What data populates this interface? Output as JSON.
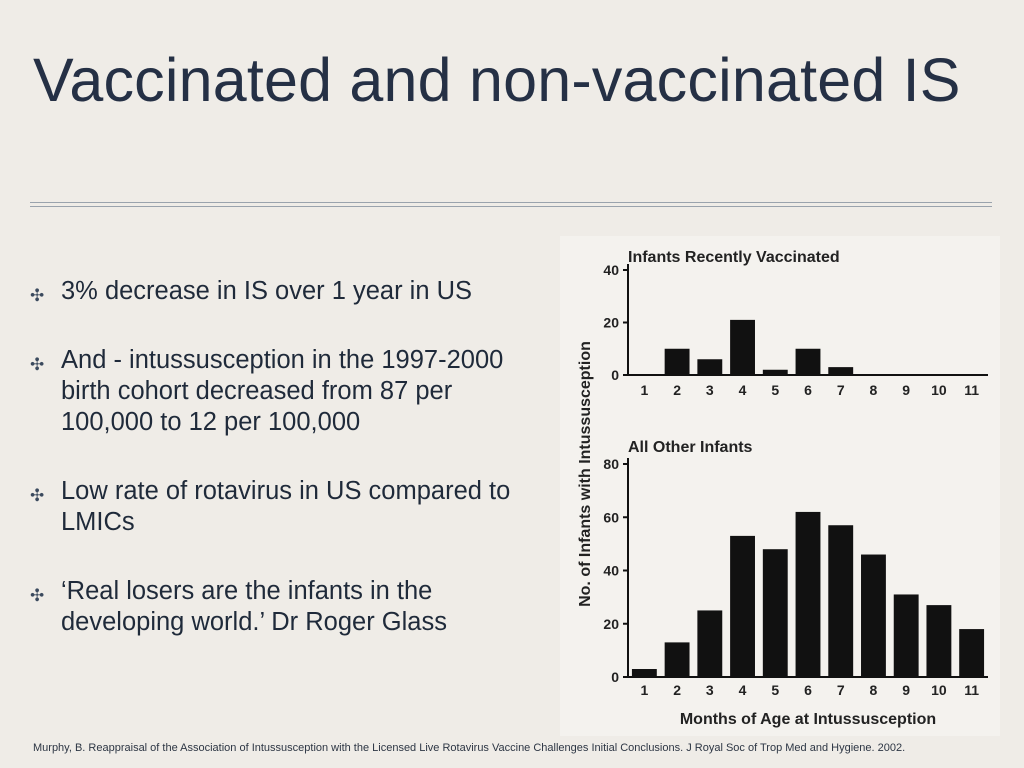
{
  "slide": {
    "title": "Vaccinated and non-vaccinated IS",
    "bullet_glyph": "✣",
    "bullets": [
      "3% decrease in IS over 1 year in US",
      "And - intussusception in the 1997-2000 birth cohort decreased from 87 per 100,000 to 12 per 100,000",
      "Low rate of rotavirus in US compared to LMICs",
      "‘Real losers are the infants in the developing world.’ Dr Roger Glass"
    ],
    "citation": "Murphy, B. Reappraisal of the Association of Intussusception with the Licensed Live Rotavirus Vaccine Challenges Initial Conclusions. J Royal Soc of Trop Med and Hygiene. 2002."
  },
  "chart_data": [
    {
      "type": "bar",
      "title": "Infants Recently Vaccinated",
      "ylabel": "No. of Infants with Intussusception",
      "xlabel": "",
      "categories": [
        "1",
        "2",
        "3",
        "4",
        "5",
        "6",
        "7",
        "8",
        "9",
        "10",
        "11"
      ],
      "values": [
        0,
        10,
        6,
        21,
        2,
        10,
        3,
        0,
        0,
        0,
        0
      ],
      "yticks": [
        0,
        20,
        40
      ],
      "ylim": [
        0,
        40
      ],
      "grid": false,
      "bar_color": "#111111"
    },
    {
      "type": "bar",
      "title": "All Other Infants",
      "ylabel": "No. of Infants with Intussusception",
      "xlabel": "Months of Age at Intussusception",
      "categories": [
        "1",
        "2",
        "3",
        "4",
        "5",
        "6",
        "7",
        "8",
        "9",
        "10",
        "11"
      ],
      "values": [
        3,
        13,
        25,
        53,
        48,
        62,
        57,
        46,
        31,
        27,
        18
      ],
      "yticks": [
        0,
        20,
        40,
        60,
        80
      ],
      "ylim": [
        0,
        80
      ],
      "grid": false,
      "bar_color": "#111111"
    }
  ]
}
